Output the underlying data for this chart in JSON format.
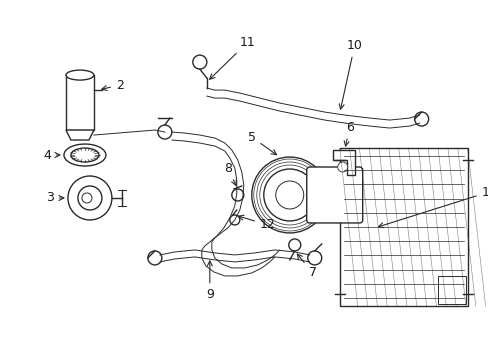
{
  "background_color": "#ffffff",
  "line_color": "#2a2a2a",
  "text_color": "#1a1a1a",
  "fig_width": 4.89,
  "fig_height": 3.6,
  "dpi": 100
}
